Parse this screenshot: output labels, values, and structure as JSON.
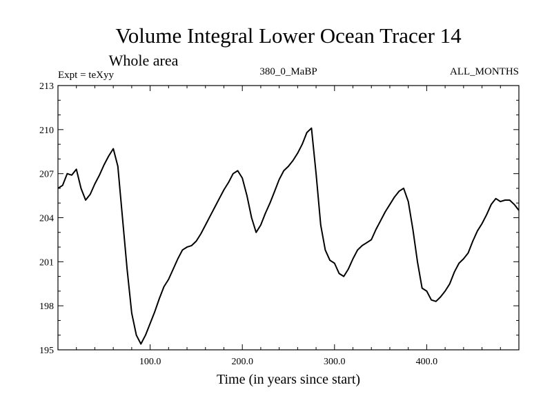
{
  "chart_data": {
    "type": "line",
    "title": "Volume Integral Lower Ocean Tracer 14",
    "subtitle": "Whole area",
    "annotations": {
      "left": "Expt = teXyy",
      "center": "380_0_MaBP",
      "right": "ALL_MONTHS"
    },
    "xlabel": "Time (in years since start)",
    "ylabel": "",
    "xlim": [
      0,
      500
    ],
    "ylim": [
      195,
      213
    ],
    "x_ticks": [
      100,
      200,
      300,
      400
    ],
    "x_tick_labels": [
      "100.0",
      "200.0",
      "300.0",
      "400.0"
    ],
    "y_ticks": [
      195,
      198,
      201,
      204,
      207,
      210,
      213
    ],
    "y_tick_labels": [
      "195",
      "198",
      "201",
      "204",
      "207",
      "210",
      "213"
    ],
    "grid": false,
    "series": [
      {
        "color": "#000000",
        "x": [
          0,
          5,
          10,
          15,
          20,
          25,
          30,
          35,
          40,
          45,
          50,
          55,
          60,
          65,
          70,
          75,
          80,
          85,
          90,
          95,
          100,
          105,
          110,
          115,
          120,
          125,
          130,
          135,
          140,
          145,
          150,
          155,
          160,
          165,
          170,
          175,
          180,
          185,
          190,
          195,
          200,
          205,
          210,
          215,
          220,
          225,
          230,
          235,
          240,
          245,
          250,
          255,
          260,
          265,
          270,
          275,
          280,
          285,
          290,
          295,
          300,
          305,
          310,
          315,
          320,
          325,
          330,
          335,
          340,
          345,
          350,
          355,
          360,
          365,
          370,
          375,
          380,
          385,
          390,
          395,
          400,
          405,
          410,
          415,
          420,
          425,
          430,
          435,
          440,
          445,
          450,
          455,
          460,
          465,
          470,
          475,
          480,
          485,
          490,
          495,
          500
        ],
        "y": [
          206.0,
          206.2,
          207.0,
          206.9,
          207.3,
          206.0,
          205.2,
          205.6,
          206.3,
          206.9,
          207.6,
          208.2,
          208.7,
          207.5,
          204.0,
          200.5,
          197.5,
          196.0,
          195.4,
          196.0,
          196.8,
          197.6,
          198.5,
          199.3,
          199.8,
          200.5,
          201.2,
          201.8,
          202.0,
          202.1,
          202.4,
          202.9,
          203.5,
          204.1,
          204.7,
          205.3,
          205.9,
          206.4,
          207.0,
          207.2,
          206.7,
          205.5,
          204.0,
          203.0,
          203.5,
          204.3,
          205.0,
          205.8,
          206.6,
          207.2,
          207.5,
          207.9,
          208.4,
          209.0,
          209.8,
          210.1,
          207.0,
          203.5,
          201.8,
          201.1,
          200.9,
          200.2,
          200.0,
          200.5,
          201.2,
          201.8,
          202.1,
          202.3,
          202.5,
          203.2,
          203.8,
          204.4,
          204.9,
          205.4,
          205.8,
          206.0,
          205.1,
          203.2,
          201.0,
          199.2,
          199.0,
          198.4,
          198.3,
          198.6,
          199.0,
          199.5,
          200.3,
          200.9,
          201.2,
          201.6,
          202.4,
          203.1,
          203.6,
          204.2,
          204.9,
          205.3,
          205.1,
          205.2,
          205.2,
          204.9,
          204.5
        ]
      }
    ]
  }
}
